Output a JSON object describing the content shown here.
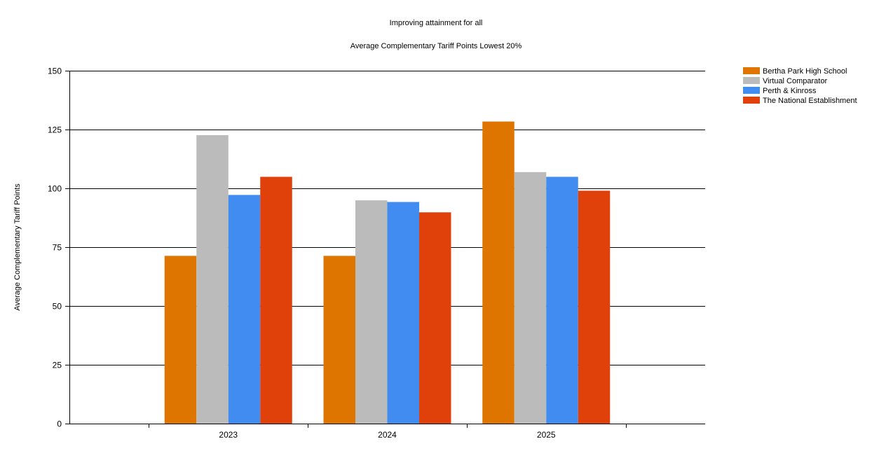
{
  "chart_data": {
    "type": "bar",
    "title": "Improving attainment for all",
    "subtitle": "Average Complementary Tariff Points Lowest 20%",
    "xlabel": "",
    "ylabel": "Average Complementary Tariff Points",
    "categories": [
      "2023",
      "2024",
      "2025"
    ],
    "ylim": [
      0,
      150
    ],
    "yticks": [
      0,
      25,
      50,
      75,
      100,
      125,
      150
    ],
    "grid": true,
    "legend_position": "top-right",
    "series": [
      {
        "name": "Bertha Park High School",
        "color": "#DD7500",
        "values": [
          71.3,
          71.3,
          128.4
        ]
      },
      {
        "name": "Virtual Comparator",
        "color": "#BBBBBB",
        "values": [
          122.6,
          94.9,
          106.9
        ]
      },
      {
        "name": "Perth & Kinross",
        "color": "#418CF0",
        "values": [
          97.2,
          94.2,
          104.9
        ]
      },
      {
        "name": "The National Establishment",
        "color": "#E0400A",
        "values": [
          104.9,
          89.8,
          99.0
        ]
      }
    ]
  }
}
